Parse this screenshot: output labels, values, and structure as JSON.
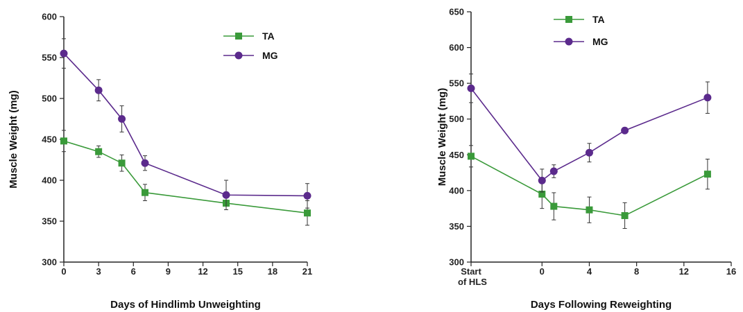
{
  "chart_data": [
    {
      "type": "line",
      "xlabel": "Days of Hindlimb Unweighting",
      "ylabel": "Muscle Weight (mg)",
      "xlim": [
        0,
        21
      ],
      "ylim": [
        300,
        600
      ],
      "xticks": [
        0,
        3,
        6,
        9,
        12,
        15,
        18,
        21
      ],
      "yticks": [
        300,
        350,
        400,
        450,
        500,
        550,
        600
      ],
      "legend_position": "top-right",
      "series": [
        {
          "name": "TA",
          "color": "#3a9a3a",
          "marker": "square",
          "x": [
            0,
            3,
            5,
            7,
            14,
            21
          ],
          "y": [
            448,
            435,
            421,
            385,
            372,
            360
          ],
          "err": [
            13,
            7,
            10,
            10,
            8,
            15
          ]
        },
        {
          "name": "MG",
          "color": "#5b2a8c",
          "marker": "circle",
          "x": [
            0,
            3,
            5,
            7,
            14,
            21
          ],
          "y": [
            555,
            510,
            475,
            421,
            382,
            381
          ],
          "err": [
            18,
            13,
            16,
            9,
            18,
            15
          ]
        }
      ]
    },
    {
      "type": "line",
      "xlabel": "Days Following Reweighting",
      "ylabel": "Muscle Weight (mg)",
      "xlim": [
        "Start of HLS",
        16
      ],
      "ylim": [
        300,
        650
      ],
      "xticks": [
        "Start of HLS",
        0,
        4,
        8,
        12,
        16
      ],
      "yticks": [
        300,
        350,
        400,
        450,
        500,
        550,
        600,
        650
      ],
      "legend_position": "top-left",
      "series": [
        {
          "name": "TA",
          "color": "#3a9a3a",
          "marker": "square",
          "x": [
            "Start of HLS",
            0,
            1,
            4,
            7,
            14
          ],
          "y": [
            448,
            395,
            378,
            373,
            365,
            423
          ],
          "err": [
            15,
            20,
            19,
            18,
            18,
            21
          ]
        },
        {
          "name": "MG",
          "color": "#5b2a8c",
          "marker": "circle",
          "x": [
            "Start of HLS",
            0,
            1,
            4,
            7,
            14
          ],
          "y": [
            543,
            414,
            427,
            453,
            484,
            530
          ],
          "err": [
            20,
            16,
            9,
            13,
            0,
            22
          ]
        }
      ]
    }
  ]
}
